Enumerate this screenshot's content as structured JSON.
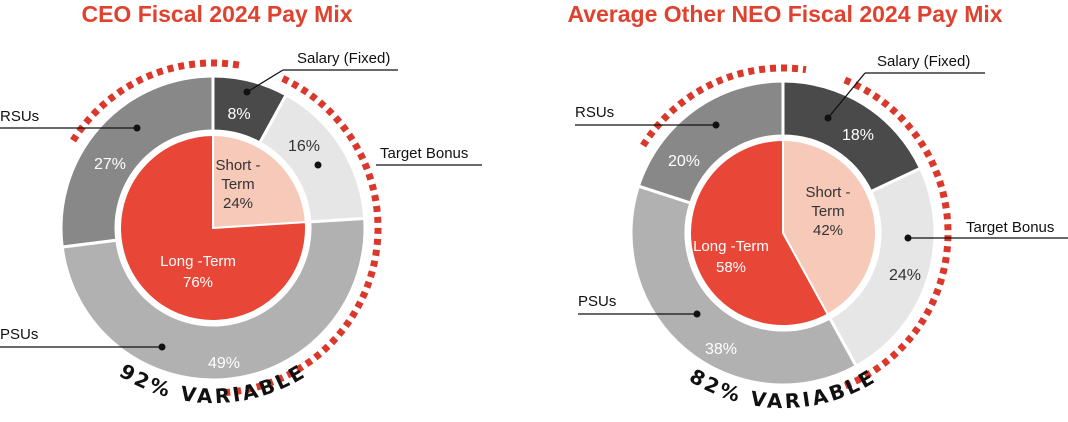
{
  "chart_data": [
    {
      "type": "pie",
      "title": "CEO Fiscal 2024 Pay Mix",
      "outer_ring": [
        {
          "name": "Salary (Fixed)",
          "value": 8,
          "value_label": "8%",
          "color": "#4a4a4a",
          "text_color": "#ffffff"
        },
        {
          "name": "Target Bonus",
          "value": 16,
          "value_label": "16%",
          "color": "#e6e6e6",
          "text_color": "#333333"
        },
        {
          "name": "PSUs",
          "value": 49,
          "value_label": "49%",
          "color": "#b1b1b1",
          "text_color": "#ffffff"
        },
        {
          "name": "RSUs",
          "value": 27,
          "value_label": "27%",
          "color": "#888888",
          "text_color": "#ffffff"
        }
      ],
      "inner_pie": [
        {
          "name": "Short-Term",
          "line1": "Short -",
          "line2": "Term",
          "value": 24,
          "value_label": "24%",
          "color": "#f7c9b8",
          "text_color": "#333333"
        },
        {
          "name": "Long-Term",
          "line1": "Long -Term",
          "line2": "",
          "value": 76,
          "value_label": "76%",
          "color": "#e84637",
          "text_color": "#ffffff"
        }
      ],
      "variable_label": "92% VARIABLE"
    },
    {
      "type": "pie",
      "title": "Average Other NEO Fiscal 2024 Pay Mix",
      "outer_ring": [
        {
          "name": "Salary (Fixed)",
          "value": 18,
          "value_label": "18%",
          "color": "#4a4a4a",
          "text_color": "#ffffff"
        },
        {
          "name": "Target Bonus",
          "value": 24,
          "value_label": "24%",
          "color": "#e6e6e6",
          "text_color": "#333333"
        },
        {
          "name": "PSUs",
          "value": 38,
          "value_label": "38%",
          "color": "#b1b1b1",
          "text_color": "#ffffff"
        },
        {
          "name": "RSUs",
          "value": 20,
          "value_label": "20%",
          "color": "#888888",
          "text_color": "#ffffff"
        }
      ],
      "inner_pie": [
        {
          "name": "Short-Term",
          "line1": "Short -",
          "line2": "Term",
          "value": 42,
          "value_label": "42%",
          "color": "#f7c9b8",
          "text_color": "#333333"
        },
        {
          "name": "Long-Term",
          "line1": "Long -Term",
          "line2": "",
          "value": 58,
          "value_label": "58%",
          "color": "#e84637",
          "text_color": "#ffffff"
        }
      ],
      "variable_label": "82% VARIABLE"
    }
  ],
  "colors": {
    "title": "#e0422f",
    "dashed_arc": "#d9382b",
    "leader_line": "#111111"
  }
}
